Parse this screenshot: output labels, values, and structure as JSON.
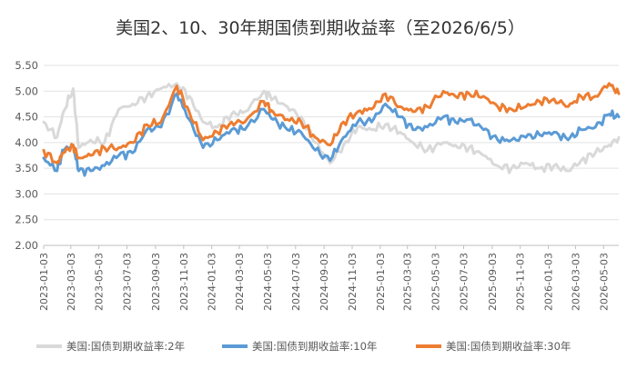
{
  "chart_data": {
    "type": "line",
    "title": "美国2、10、30年期国债到期收益率（至2026/6/5）",
    "xlabel": "",
    "ylabel": "",
    "ylim": [
      2.0,
      5.5
    ],
    "yticks": [
      "2.00",
      "2.50",
      "3.00",
      "3.50",
      "4.00",
      "4.50",
      "5.00",
      "5.50"
    ],
    "xticks": [
      "2023-01-03",
      "2023-03-03",
      "2023-05-03",
      "2023-07-03",
      "2023-09-03",
      "2023-11-03",
      "2024-01-03",
      "2024-03-03",
      "2024-05-03",
      "2024-07-03",
      "2024-09-03",
      "2024-11-03",
      "2025-01-03",
      "2025-03-03",
      "2025-05-03",
      "2025-07-03",
      "2025-09-03",
      "2025-11-03",
      "2026-01-03",
      "2026-03-03",
      "2026-05-03"
    ],
    "x_start": "2023-01-03",
    "x_end": "2026-06-05",
    "grid": "horizontal",
    "legend_position": "bottom",
    "x": [
      "2023-01-03",
      "2023-02-01",
      "2023-02-15",
      "2023-03-08",
      "2023-03-20",
      "2023-04-15",
      "2023-05-15",
      "2023-06-15",
      "2023-07-15",
      "2023-08-15",
      "2023-09-15",
      "2023-10-19",
      "2023-11-15",
      "2023-12-15",
      "2024-01-15",
      "2024-02-15",
      "2024-03-15",
      "2024-04-25",
      "2024-05-15",
      "2024-06-15",
      "2024-07-15",
      "2024-08-15",
      "2024-09-16",
      "2024-10-15",
      "2024-11-15",
      "2024-12-15",
      "2025-01-14",
      "2025-02-15",
      "2025-03-15",
      "2025-04-15",
      "2025-05-20",
      "2025-06-15",
      "2025-07-15",
      "2025-08-15",
      "2025-09-15",
      "2025-10-15",
      "2025-11-15",
      "2025-12-15",
      "2026-01-15",
      "2026-02-15",
      "2026-03-15",
      "2026-04-15",
      "2026-05-15",
      "2026-06-05"
    ],
    "series": [
      {
        "name": "美国:国债到期收益率:2年",
        "color": "#d9d9d9",
        "values": [
          4.4,
          4.1,
          4.6,
          5.05,
          3.9,
          4.05,
          4.0,
          4.65,
          4.75,
          4.9,
          5.05,
          5.15,
          4.9,
          4.4,
          4.3,
          4.55,
          4.6,
          5.0,
          4.85,
          4.7,
          4.5,
          4.0,
          3.6,
          3.95,
          4.3,
          4.25,
          4.35,
          4.2,
          4.0,
          3.85,
          4.0,
          3.95,
          3.9,
          3.75,
          3.55,
          3.5,
          3.6,
          3.5,
          3.55,
          3.45,
          3.65,
          3.8,
          3.95,
          4.1
        ]
      },
      {
        "name": "美国:国债到期收益率:10年",
        "color": "#5b9bd5",
        "values": [
          3.7,
          3.45,
          3.85,
          3.95,
          3.45,
          3.45,
          3.55,
          3.75,
          3.8,
          4.25,
          4.3,
          4.95,
          4.45,
          3.9,
          4.05,
          4.25,
          4.25,
          4.65,
          4.45,
          4.25,
          4.2,
          3.85,
          3.65,
          4.1,
          4.4,
          4.4,
          4.75,
          4.5,
          4.25,
          4.3,
          4.5,
          4.4,
          4.45,
          4.25,
          4.05,
          4.05,
          4.1,
          4.15,
          4.2,
          4.05,
          4.25,
          4.3,
          4.55,
          4.5
        ]
      },
      {
        "name": "美国:国债到期收益率:30年",
        "color": "#ed7d31",
        "values": [
          3.85,
          3.6,
          3.8,
          3.95,
          3.7,
          3.75,
          3.9,
          3.9,
          4.0,
          4.35,
          4.4,
          5.1,
          4.6,
          4.05,
          4.2,
          4.4,
          4.4,
          4.8,
          4.6,
          4.45,
          4.4,
          4.1,
          3.95,
          4.4,
          4.6,
          4.65,
          4.95,
          4.7,
          4.6,
          4.7,
          5.0,
          4.9,
          4.95,
          4.9,
          4.7,
          4.65,
          4.7,
          4.8,
          4.85,
          4.7,
          4.9,
          4.9,
          5.15,
          4.95
        ]
      }
    ]
  }
}
